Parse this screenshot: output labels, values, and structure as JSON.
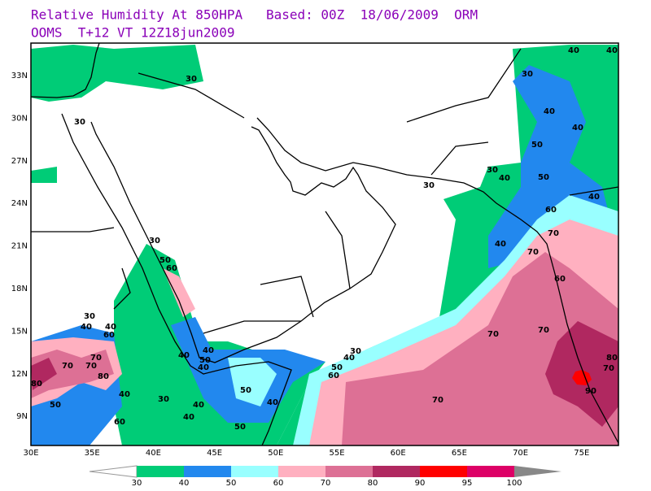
{
  "header": {
    "line1": "Relative Humidity At 850HPA   Based: 00Z  18/06/2009  ORM",
    "line2": "OOMS  T+12 VT 12Z18jun2009"
  },
  "lat_labels": [
    "33N",
    "30N",
    "27N",
    "24N",
    "21N",
    "18N",
    "15N",
    "12N",
    "9N"
  ],
  "lon_labels": [
    "30E",
    "35E",
    "40E",
    "45E",
    "50E",
    "55E",
    "60E",
    "65E",
    "70E",
    "75E"
  ],
  "colorbar": {
    "levels": [
      30,
      40,
      50,
      60,
      70,
      80,
      90,
      95,
      100
    ],
    "colors": [
      "#00cc77",
      "#2288ee",
      "#99ffff",
      "#ffb0c0",
      "#dd7095",
      "#b02860",
      "#ff0000",
      "#dd0066"
    ]
  },
  "contour_labels": [
    "30",
    "30",
    "40",
    "40",
    "30",
    "50",
    "30",
    "40",
    "50",
    "40",
    "30",
    "40",
    "60",
    "70",
    "70",
    "60",
    "30",
    "50",
    "60",
    "70",
    "70",
    "80",
    "70",
    "90",
    "70",
    "60",
    "50",
    "40",
    "30",
    "40",
    "40",
    "50",
    "40",
    "50",
    "40",
    "30",
    "40",
    "40",
    "50",
    "40",
    "60",
    "50",
    "30",
    "40",
    "40",
    "60",
    "70",
    "70",
    "70",
    "80",
    "80",
    "40",
    "40"
  ]
}
